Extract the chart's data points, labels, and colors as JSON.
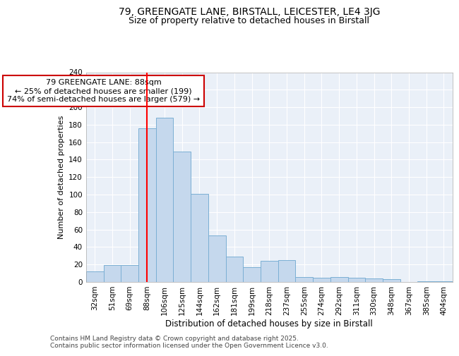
{
  "title1": "79, GREENGATE LANE, BIRSTALL, LEICESTER, LE4 3JG",
  "title2": "Size of property relative to detached houses in Birstall",
  "xlabel": "Distribution of detached houses by size in Birstall",
  "ylabel": "Number of detached properties",
  "categories": [
    "32sqm",
    "51sqm",
    "69sqm",
    "88sqm",
    "106sqm",
    "125sqm",
    "144sqm",
    "162sqm",
    "181sqm",
    "199sqm",
    "218sqm",
    "237sqm",
    "255sqm",
    "274sqm",
    "292sqm",
    "311sqm",
    "330sqm",
    "348sqm",
    "367sqm",
    "385sqm",
    "404sqm"
  ],
  "values": [
    12,
    19,
    19,
    176,
    188,
    149,
    101,
    53,
    29,
    17,
    24,
    25,
    6,
    5,
    6,
    5,
    4,
    3,
    0,
    1,
    1
  ],
  "bar_color": "#c5d8ed",
  "bar_edge_color": "#7bafd4",
  "property_line_x": 3,
  "annotation_line1": "79 GREENGATE LANE: 88sqm",
  "annotation_line2": "← 25% of detached houses are smaller (199)",
  "annotation_line3": "74% of semi-detached houses are larger (579) →",
  "annotation_box_color": "#cc0000",
  "ylim": [
    0,
    240
  ],
  "yticks": [
    0,
    20,
    40,
    60,
    80,
    100,
    120,
    140,
    160,
    180,
    200,
    220,
    240
  ],
  "background_color": "#eaf0f8",
  "grid_color": "#ffffff",
  "footer": "Contains HM Land Registry data © Crown copyright and database right 2025.\nContains public sector information licensed under the Open Government Licence v3.0.",
  "title1_fontsize": 10,
  "title2_fontsize": 9,
  "xlabel_fontsize": 8.5,
  "ylabel_fontsize": 8,
  "tick_fontsize": 7.5,
  "annotation_fontsize": 8,
  "footer_fontsize": 6.5
}
